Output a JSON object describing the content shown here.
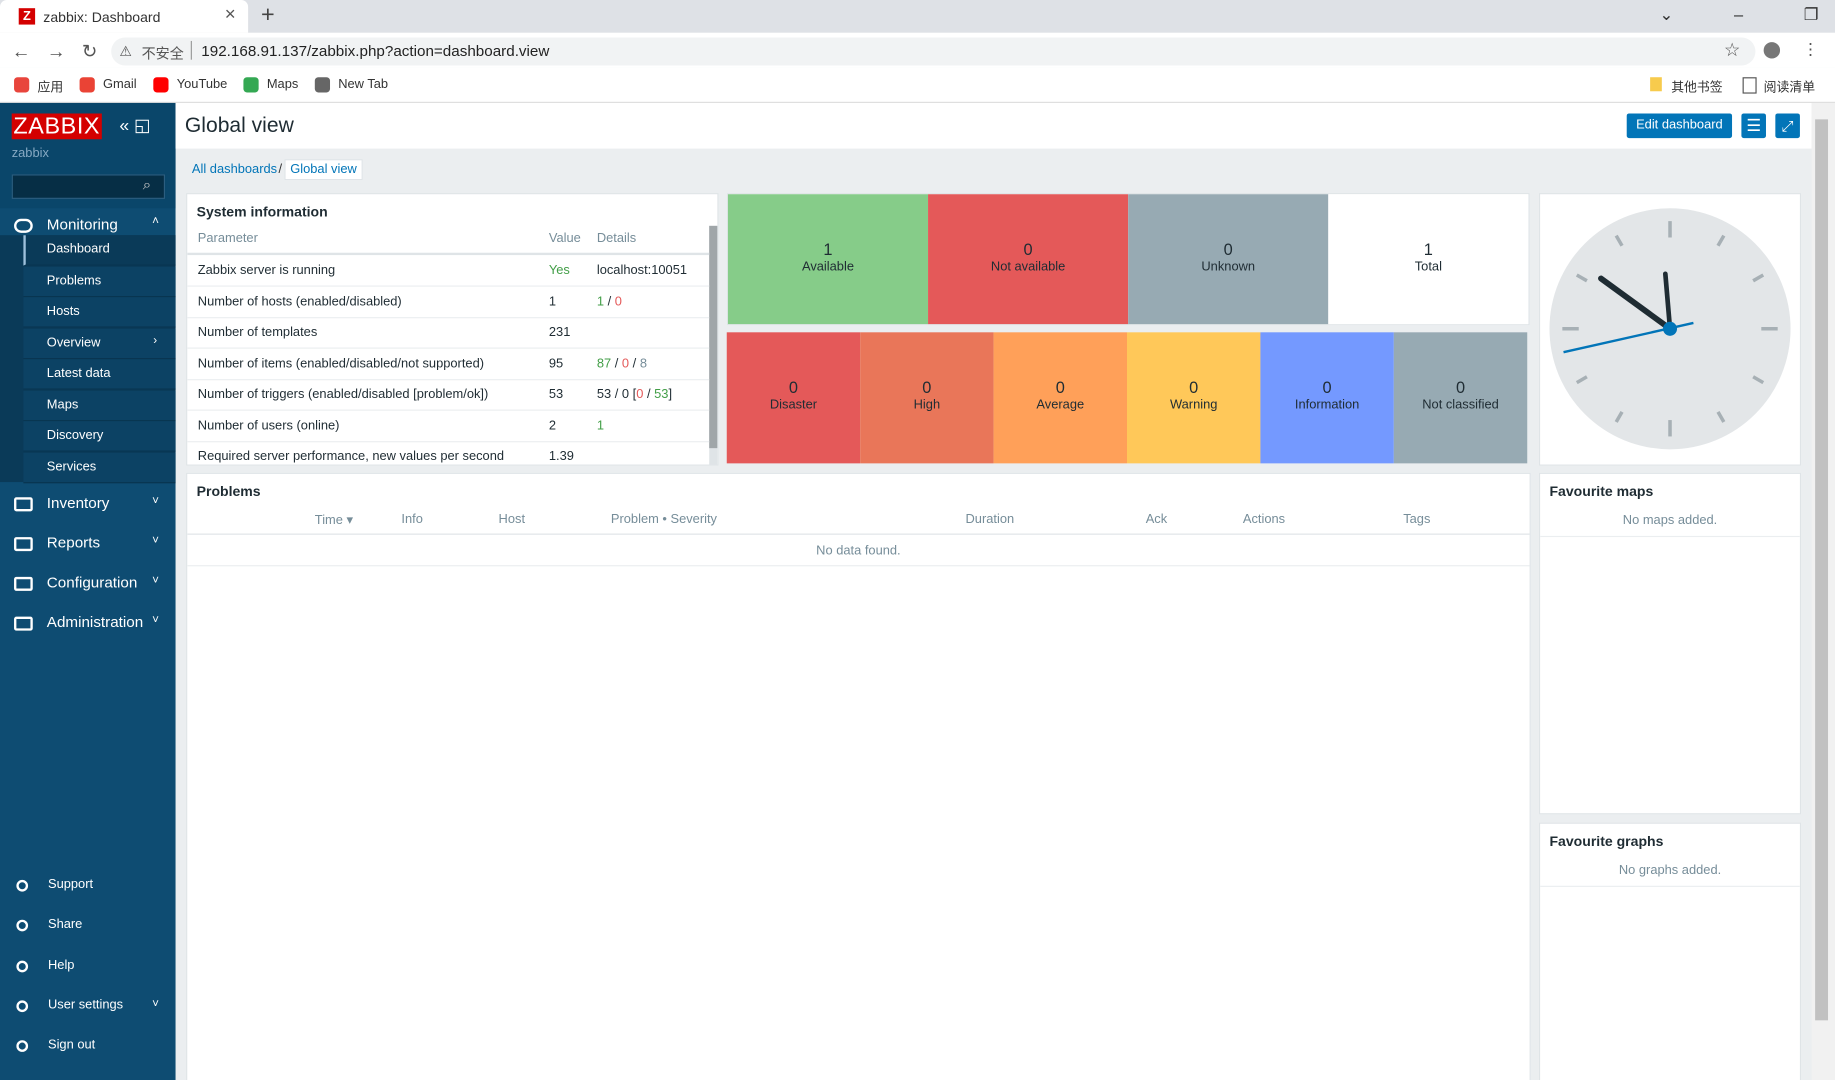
{
  "browser": {
    "tab_title": "zabbix: Dashboard",
    "security": "不安全",
    "url": "192.168.91.137/zabbix.php?action=dashboard.view",
    "bookmarks": [
      "应用",
      "Gmail",
      "YouTube",
      "Maps",
      "New Tab"
    ],
    "bookmarks_right": [
      "其他书签",
      "阅读清单"
    ]
  },
  "sidebar": {
    "logo": "ZABBIX",
    "user": "zabbix",
    "menu": [
      {
        "label": "Monitoring",
        "items": [
          "Dashboard",
          "Problems",
          "Hosts",
          "Overview",
          "Latest data",
          "Maps",
          "Discovery",
          "Services"
        ]
      },
      {
        "label": "Inventory"
      },
      {
        "label": "Reports"
      },
      {
        "label": "Configuration"
      },
      {
        "label": "Administration"
      }
    ],
    "footer": [
      "Support",
      "Share",
      "Help",
      "User settings",
      "Sign out"
    ]
  },
  "header": {
    "title": "Global view",
    "edit_button": "Edit dashboard"
  },
  "breadcrumbs": [
    "All dashboards",
    "Global view"
  ],
  "system_information": {
    "title": "System information",
    "columns": [
      "Parameter",
      "Value",
      "Details"
    ],
    "rows": [
      {
        "parameter": "Zabbix server is running",
        "value": "Yes",
        "value_color": "#429e47",
        "details": [
          {
            "text": "localhost:10051"
          }
        ]
      },
      {
        "parameter": "Number of hosts (enabled/disabled)",
        "value": 1,
        "details": [
          {
            "text": 1,
            "color": "#429e47"
          },
          {
            "text": " / "
          },
          {
            "text": 0,
            "color": "#e45959"
          }
        ]
      },
      {
        "parameter": "Number of templates",
        "value": 231,
        "details": []
      },
      {
        "parameter": "Number of items (enabled/disabled/not supported)",
        "value": 95,
        "details": [
          {
            "text": 87,
            "color": "#429e47"
          },
          {
            "text": " / "
          },
          {
            "text": 0,
            "color": "#e45959"
          },
          {
            "text": " / "
          },
          {
            "text": 8,
            "color": "#768d99"
          }
        ]
      },
      {
        "parameter": "Number of triggers (enabled/disabled [problem/ok])",
        "value": 53,
        "details": [
          {
            "text": "53 / 0 ["
          },
          {
            "text": 0,
            "color": "#e45959"
          },
          {
            "text": " / "
          },
          {
            "text": 53,
            "color": "#429e47"
          },
          {
            "text": "]"
          }
        ]
      },
      {
        "parameter": "Number of users (online)",
        "value": 2,
        "details": [
          {
            "text": 1,
            "color": "#429e47"
          }
        ]
      },
      {
        "parameter": "Required server performance, new values per second",
        "value": 1.39,
        "details": []
      }
    ]
  },
  "host_availability": [
    {
      "count": 1,
      "label": "Available",
      "color": "#86cc89"
    },
    {
      "count": 0,
      "label": "Not available",
      "color": "#e45959"
    },
    {
      "count": 0,
      "label": "Unknown",
      "color": "#97aab3"
    },
    {
      "count": 1,
      "label": "Total",
      "color": "#ffffff"
    }
  ],
  "problems_by_severity": [
    {
      "count": 0,
      "label": "Disaster",
      "color": "#e45959"
    },
    {
      "count": 0,
      "label": "High",
      "color": "#e97659"
    },
    {
      "count": 0,
      "label": "Average",
      "color": "#ffa059"
    },
    {
      "count": 0,
      "label": "Warning",
      "color": "#ffc859"
    },
    {
      "count": 0,
      "label": "Information",
      "color": "#7499ff"
    },
    {
      "count": 0,
      "label": "Not classified",
      "color": "#97aab3"
    }
  ],
  "problems": {
    "title": "Problems",
    "columns": [
      "Time ▾",
      "Info",
      "Host",
      "Problem • Severity",
      "Duration",
      "Ack",
      "Actions",
      "Tags"
    ],
    "empty": "No data found."
  },
  "favourite_maps": {
    "title": "Favourite maps",
    "empty": "No maps added."
  },
  "favourite_graphs": {
    "title": "Favourite graphs",
    "empty": "No graphs added."
  }
}
